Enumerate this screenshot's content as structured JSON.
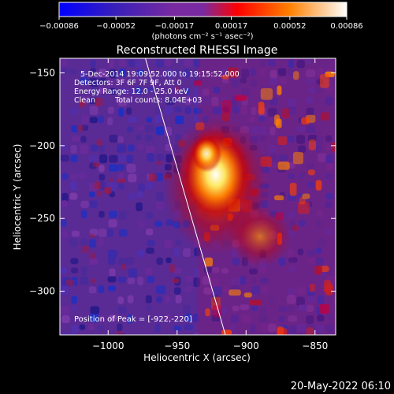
{
  "chart_data": {
    "type": "heatmap",
    "title": "Reconstructed RHESSI Image",
    "xlabel": "Heliocentric X (arcsec)",
    "ylabel": "Heliocentric Y (arcsec)",
    "xlim": [
      -1035,
      -835
    ],
    "ylim": [
      -330,
      -140
    ],
    "xticks": [
      -1000,
      -950,
      -900,
      -850
    ],
    "xtick_labels": [
      "−1000",
      "−950",
      "−900",
      "−850"
    ],
    "yticks": [
      -150,
      -200,
      -250,
      -300
    ],
    "ytick_labels": [
      "−150",
      "−200",
      "−250",
      "−300"
    ],
    "colorbar": {
      "min": -0.00086,
      "max": 0.00086,
      "ticks": [
        -0.00086,
        -0.00052,
        -0.00017,
        0.00017,
        0.00052,
        0.00086
      ],
      "tick_labels": [
        "−0.00086",
        "−0.00052",
        "−0.00017",
        "0.00017",
        "0.00052",
        "0.00086"
      ],
      "unit_label": "(photons cm⁻² s⁻¹ asec⁻²)",
      "colors": [
        "#0000ff",
        "#3a1fb8",
        "#7a2aa0",
        "#7a2aa0",
        "#ff0000",
        "#ff8000",
        "#ffffff"
      ]
    },
    "peak": {
      "x": -922,
      "y": -220,
      "value": 0.00086
    },
    "limb_line": [
      [
        -973,
        -140
      ],
      [
        -915,
        -330
      ]
    ],
    "grid": false
  },
  "annotations": {
    "line1": "5-Dec-2014 19:09:52.000 to 19:15:52.000",
    "line2": "Detectors: 3F 6F 7F 9F, Att 0",
    "line3": "Energy Range: 12.0 - 25.0 keV",
    "line4_a": "Clean",
    "line4_b": "Total counts: 8.04E+03",
    "peak_text": "Position of Peak = [-922,-220]"
  },
  "timestamp": "20-May-2022 06:10"
}
